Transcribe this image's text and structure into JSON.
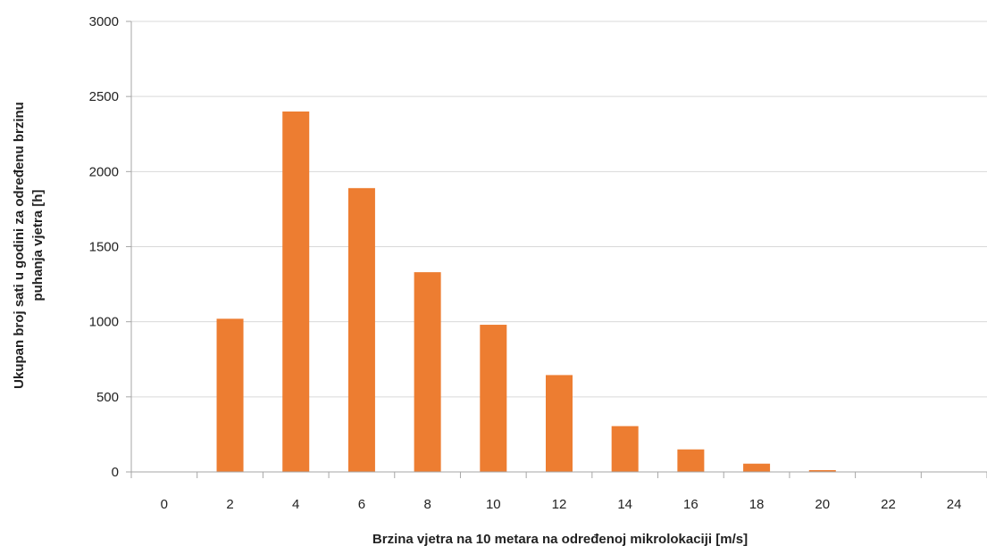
{
  "chart_data": {
    "type": "bar",
    "categories": [
      "0",
      "2",
      "4",
      "6",
      "8",
      "10",
      "12",
      "14",
      "16",
      "18",
      "20",
      "22",
      "24"
    ],
    "values": [
      0,
      1020,
      2400,
      1890,
      1330,
      980,
      645,
      305,
      150,
      55,
      12,
      0,
      0
    ],
    "xlabel": "Brzina vjetra na 10 metara na određenoj mikrolokaciji  [m/s]",
    "ylabel_lines": [
      "Ukupan broj sati u godini za određenu brzinu",
      "puhanja vjetra  [h]"
    ],
    "ylim": [
      0,
      3000
    ],
    "yticks": [
      0,
      500,
      1000,
      1500,
      2000,
      2500,
      3000
    ],
    "grid": true,
    "legend": "none",
    "colors": {
      "bar": "#ED7D31",
      "grid": "#D9D9D9",
      "axis": "#A6A6A6"
    }
  }
}
